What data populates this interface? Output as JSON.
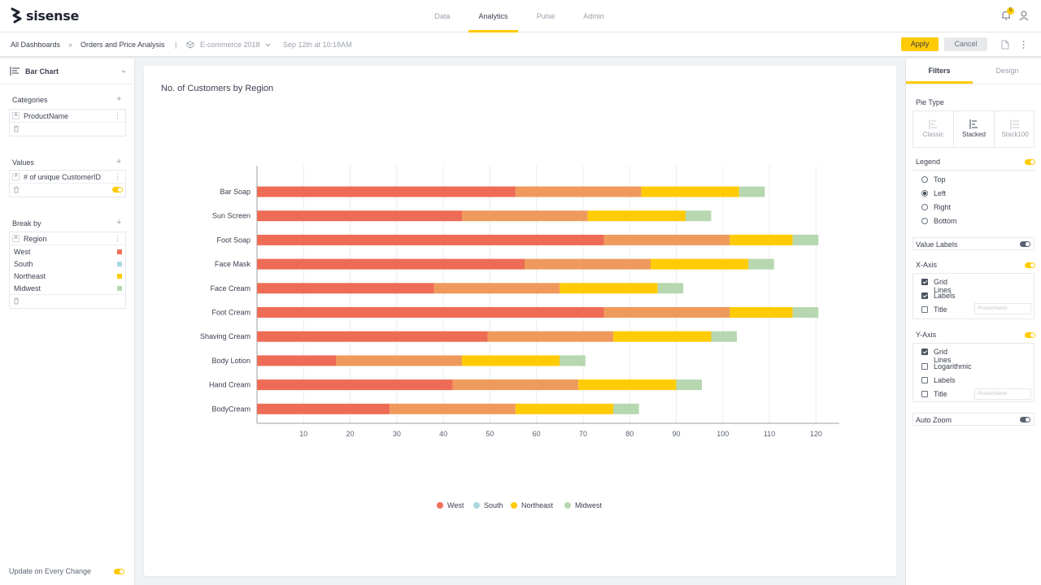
{
  "app": {
    "brand": "sisense",
    "notifications": "5"
  },
  "nav": [
    {
      "label": "Data",
      "active": false
    },
    {
      "label": "Analytics",
      "active": true
    },
    {
      "label": "Pulse",
      "active": false
    },
    {
      "label": "Admin",
      "active": false
    }
  ],
  "breadcrumb": {
    "all": "All Dashboards",
    "separator": "»",
    "dashboard": "Orders and Price Analysis",
    "datasource": "E-commerce 2018",
    "timestamp": "Sep 12th at 10:18AM"
  },
  "actions": {
    "apply": "Apply",
    "cancel": "Cancel"
  },
  "left": {
    "widget_type": "Bar Chart",
    "categories": {
      "title": "Categories",
      "field": "ProductName",
      "type_tag": "A"
    },
    "values": {
      "title": "Values",
      "field": "# of unique CustomerID",
      "type_tag": "#"
    },
    "breakby": {
      "title": "Break by",
      "field": "Region",
      "type_tag": "A",
      "items": [
        {
          "label": "West",
          "color": "#f0705a"
        },
        {
          "label": "South",
          "color": "#a9d8de"
        },
        {
          "label": "Northeast",
          "color": "#ffcb05"
        },
        {
          "label": "Midwest",
          "color": "#b6d7b0"
        }
      ]
    },
    "footer": "Update on Every Change"
  },
  "chart_data": {
    "type": "bar",
    "orientation": "horizontal",
    "stacked": true,
    "title": "No. of Customers by Region",
    "categories": [
      "Bar Soap",
      "Sun Screen",
      "Foot Soap",
      "Face Mask",
      "Face Cream",
      "Foot Cream",
      "Shaving Cream",
      "Body Lotion",
      "Hand Cream",
      "BodyCream"
    ],
    "series": [
      {
        "name": "West",
        "color": "#ee6c55",
        "values": [
          55.5,
          44,
          74.5,
          57.5,
          38,
          74.5,
          49.5,
          17,
          42,
          28.5
        ]
      },
      {
        "name": "South",
        "color": "#ef9a5c",
        "values": [
          27,
          27,
          27,
          27,
          27,
          27,
          27,
          27,
          27,
          27
        ]
      },
      {
        "name": "Northeast",
        "color": "#ffcb05",
        "values": [
          21,
          21,
          13.5,
          21,
          21,
          13.5,
          21,
          21,
          21,
          21
        ]
      },
      {
        "name": "Midwest",
        "color": "#b6d7b0",
        "values": [
          5.5,
          5.5,
          5.5,
          5.5,
          5.5,
          5.5,
          5.5,
          5.5,
          5.5,
          5.5
        ]
      }
    ],
    "legend_swatches": [
      "#f0705a",
      "#a9d8de",
      "#ffcb05",
      "#b6d7b0"
    ],
    "xticks": [
      10,
      20,
      30,
      40,
      50,
      60,
      70,
      80,
      90,
      100,
      110,
      120
    ],
    "xlim": [
      0,
      125
    ],
    "grid": true,
    "legend": "bottom"
  },
  "right": {
    "tabs": [
      "Filters",
      "Design"
    ],
    "pie_type": {
      "label": "Pie Type",
      "options": [
        "Classic",
        "Stacked",
        "Stack100"
      ],
      "selected": "Stacked"
    },
    "legend": {
      "label": "Legend",
      "options": [
        "Top",
        "Left",
        "Right",
        "Bottom"
      ],
      "selected": "Left"
    },
    "value_labels": "Value Labels",
    "x_axis": {
      "label": "X-Axis",
      "grid": "Grid Lines",
      "labels": "Labels",
      "title": "Title",
      "title_placeholder": "ProductName"
    },
    "y_axis": {
      "label": "Y-Axis",
      "grid": "Grid Lines",
      "log": "Logarithmic",
      "labels": "Labels",
      "title": "Title",
      "title_placeholder": "ProductName"
    },
    "auto_zoom": "Auto Zoom"
  }
}
